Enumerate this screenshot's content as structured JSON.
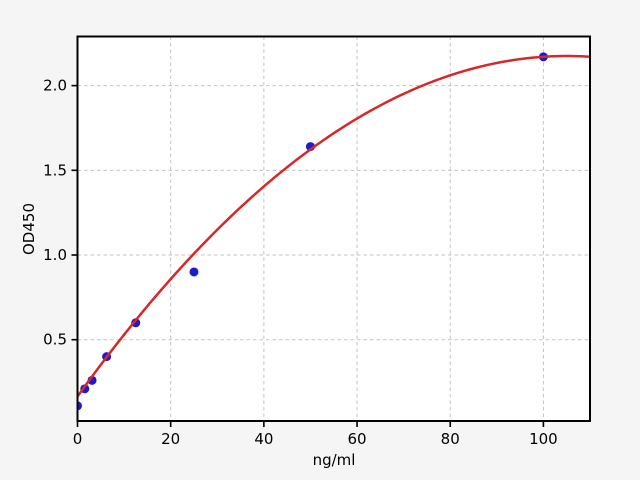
{
  "figure": {
    "background": "#f5f5f5",
    "plot_background": "#ffffff",
    "grid_color": "#c3c3c3",
    "frame_color": "#000000",
    "text_color": "#000000"
  },
  "chart_data": {
    "type": "scatter",
    "xlabel": "ng/ml",
    "ylabel": "OD450",
    "xlim": [
      0,
      110
    ],
    "ylim": [
      0.02,
      2.29
    ],
    "x_ticks": [
      0,
      20,
      40,
      60,
      80,
      100
    ],
    "x_tick_labels": [
      "0",
      "20",
      "40",
      "60",
      "80",
      "100"
    ],
    "y_ticks": [
      0.5,
      1.0,
      1.5,
      2.0
    ],
    "y_tick_labels": [
      "0.5",
      "1.0",
      "1.5",
      "2.0"
    ],
    "grid": {
      "visible": true,
      "style": "dashed"
    },
    "series": [
      {
        "name": "standard-points",
        "type": "scatter",
        "marker": "circle",
        "color": "#1c1ccd",
        "marker_diameter": 9,
        "x": [
          0,
          1.56,
          3.12,
          6.25,
          12.5,
          25,
          50,
          100
        ],
        "y": [
          0.11,
          0.21,
          0.26,
          0.4,
          0.6,
          0.9,
          1.64,
          2.17
        ]
      },
      {
        "name": "fit-curve",
        "type": "line",
        "color": "#d62828",
        "line_width": 2.5,
        "fit": "quadratic",
        "coefficients": [
          0.165,
          0.03828,
          -0.00018228
        ],
        "x_range": [
          0,
          110
        ]
      }
    ]
  }
}
